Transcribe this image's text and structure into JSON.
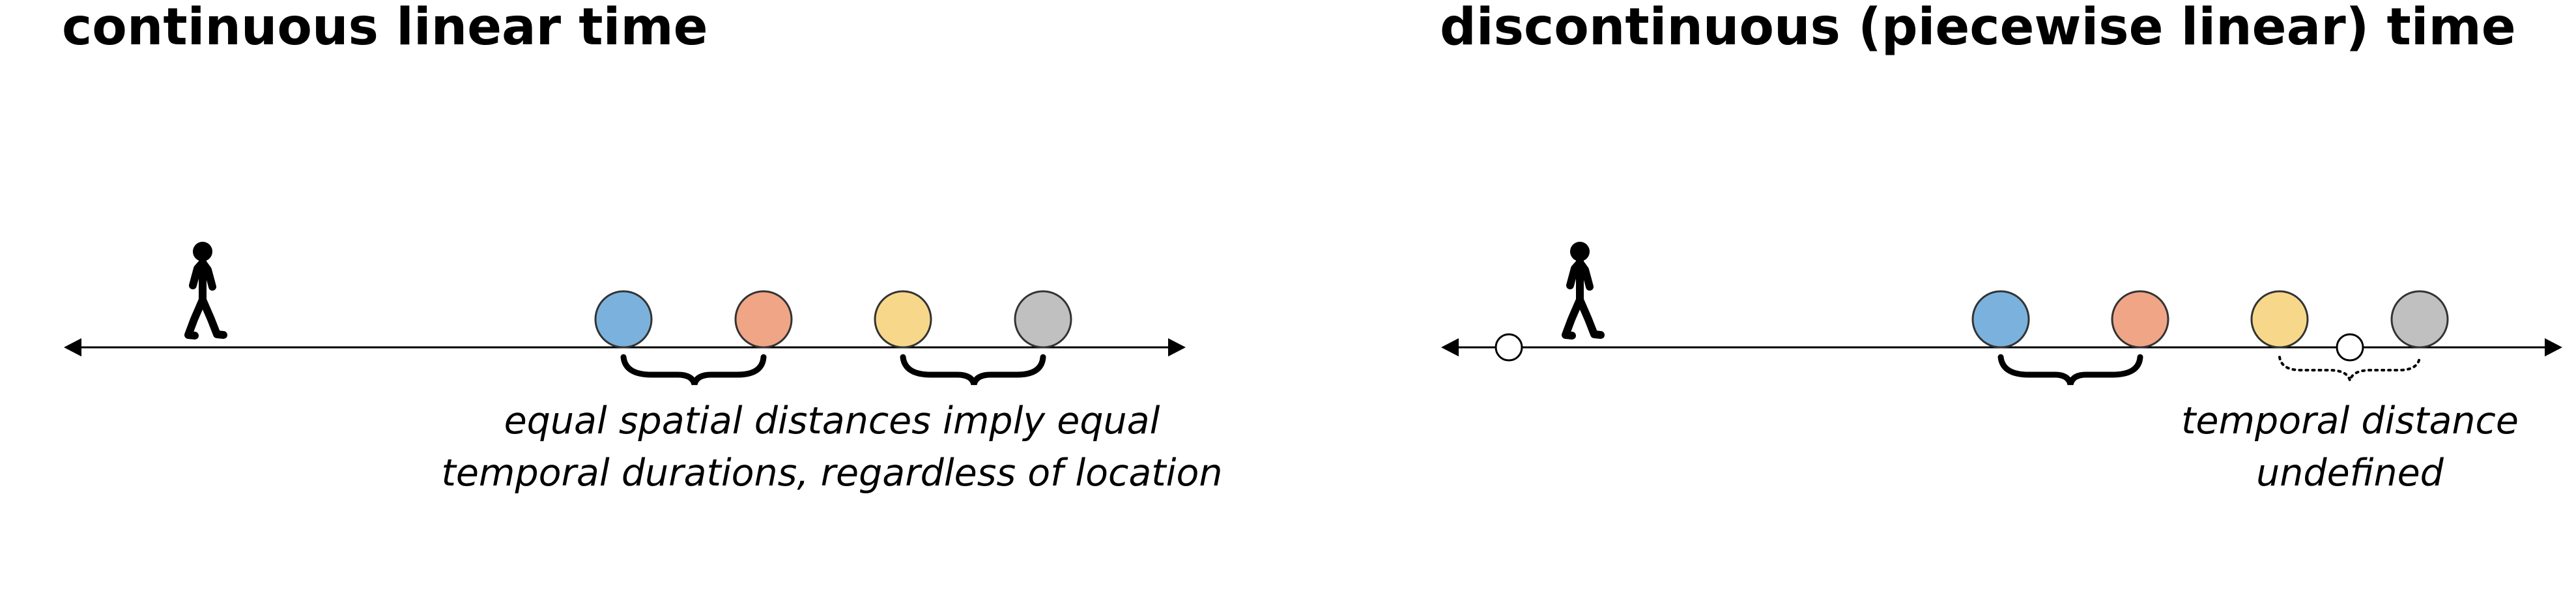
{
  "panels": [
    {
      "title": "continuous linear time",
      "caption_lines": [
        "equal spatial distances imply equal",
        "temporal durations, regardless of location"
      ],
      "elements": [
        "walking-person-icon",
        "blue-circle",
        "orange-circle",
        "yellow-circle",
        "gray-circle",
        "solid-brace",
        "solid-brace"
      ]
    },
    {
      "title": "discontinuous (piecewise linear) time",
      "caption_lines": [
        "temporal distance",
        "undefined"
      ],
      "elements": [
        "walking-person-icon",
        "open-circle",
        "blue-circle",
        "orange-circle",
        "yellow-circle",
        "open-circle",
        "gray-circle",
        "solid-brace",
        "dotted-brace"
      ]
    }
  ],
  "colors": {
    "blue": "#7ab2dd",
    "orange": "#f0a587",
    "yellow": "#f7d88a",
    "gray": "#c0c0c0",
    "line": "#000000"
  }
}
